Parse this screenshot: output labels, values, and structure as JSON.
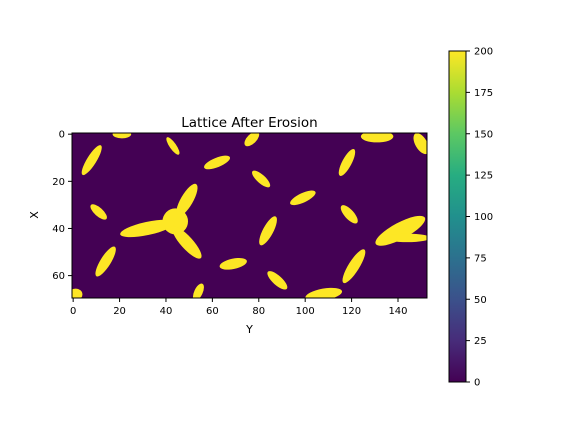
{
  "chart_data": {
    "type": "heatmap",
    "title": "Lattice After Erosion",
    "xlabel": "Y",
    "ylabel": "X",
    "grid_shape": [
      70,
      153
    ],
    "xlim": [
      -0.5,
      152.5
    ],
    "ylim": [
      69.5,
      -0.5
    ],
    "x_ticks": [
      0,
      20,
      40,
      60,
      80,
      100,
      120,
      140
    ],
    "y_ticks": [
      0,
      20,
      40,
      60
    ],
    "colorbar": {
      "min": 0,
      "max": 200,
      "ticks": [
        0,
        25,
        50,
        75,
        100,
        125,
        150,
        175,
        200
      ],
      "colormap": "viridis"
    },
    "background_value": 0,
    "feature_value": 200,
    "colors": {
      "low": "#440154",
      "high": "#fde725"
    },
    "features": [
      {
        "kind": "ellipse",
        "cx": 8,
        "cy": 11,
        "rx": 7.5,
        "ry": 2,
        "angle": -58
      },
      {
        "kind": "ellipse",
        "cx": 21,
        "cy": 0,
        "rx": 4,
        "ry": 1.8,
        "angle": 0
      },
      {
        "kind": "ellipse",
        "cx": 43,
        "cy": 5,
        "rx": 4.5,
        "ry": 1.4,
        "angle": 55
      },
      {
        "kind": "ellipse",
        "cx": 62,
        "cy": 12,
        "rx": 6,
        "ry": 2,
        "angle": -22
      },
      {
        "kind": "ellipse",
        "cx": 77,
        "cy": 2,
        "rx": 4,
        "ry": 2,
        "angle": -45
      },
      {
        "kind": "ellipse",
        "cx": 81,
        "cy": 19,
        "rx": 5,
        "ry": 1.8,
        "angle": 42
      },
      {
        "kind": "ellipse",
        "cx": 118,
        "cy": 12,
        "rx": 6.5,
        "ry": 2,
        "angle": -62
      },
      {
        "kind": "ellipse",
        "cx": 131,
        "cy": 1,
        "rx": 7,
        "ry": 2.5,
        "angle": 0
      },
      {
        "kind": "ellipse",
        "cx": 150,
        "cy": 4,
        "rx": 5,
        "ry": 2.5,
        "angle": 60
      },
      {
        "kind": "ellipse",
        "cx": 11,
        "cy": 33,
        "rx": 4.5,
        "ry": 1.8,
        "angle": 42
      },
      {
        "kind": "ellipse",
        "cx": 99,
        "cy": 27,
        "rx": 6,
        "ry": 2,
        "angle": -25
      },
      {
        "kind": "ellipse",
        "cx": 119,
        "cy": 34,
        "rx": 5,
        "ry": 2,
        "angle": 48
      },
      {
        "kind": "ellipse",
        "cx": 84,
        "cy": 41,
        "rx": 7,
        "ry": 2.2,
        "angle": -62
      },
      {
        "kind": "ellipse",
        "cx": 14,
        "cy": 54,
        "rx": 7.5,
        "ry": 2.2,
        "angle": -58
      },
      {
        "kind": "ellipse",
        "cx": 69,
        "cy": 55,
        "rx": 6,
        "ry": 2.2,
        "angle": -12
      },
      {
        "kind": "ellipse",
        "cx": 88,
        "cy": 62,
        "rx": 5.5,
        "ry": 2,
        "angle": 42
      },
      {
        "kind": "ellipse",
        "cx": 121,
        "cy": 56,
        "rx": 8.5,
        "ry": 2.3,
        "angle": -58
      },
      {
        "kind": "ellipse",
        "cx": 108,
        "cy": 68,
        "rx": 8,
        "ry": 2.5,
        "angle": -10
      },
      {
        "kind": "ellipse",
        "cx": 54,
        "cy": 67,
        "rx": 4,
        "ry": 1.8,
        "angle": -65
      },
      {
        "kind": "ellipse",
        "cx": 1,
        "cy": 68,
        "rx": 3,
        "ry": 2.5,
        "angle": 0
      },
      {
        "kind": "ellipse",
        "cx": 141,
        "cy": 41,
        "rx": 12,
        "ry": 3.5,
        "angle": -28
      },
      {
        "kind": "ellipse",
        "cx": 144,
        "cy": 44,
        "rx": 10,
        "ry": 1.8,
        "angle": 0
      },
      {
        "kind": "ellipse",
        "cx": 44,
        "cy": 37,
        "rx": 5.5,
        "ry": 5.5,
        "angle": 0
      },
      {
        "kind": "ellipse",
        "cx": 49,
        "cy": 28,
        "rx": 8,
        "ry": 2.6,
        "angle": -60
      },
      {
        "kind": "ellipse",
        "cx": 32,
        "cy": 40,
        "rx": 12,
        "ry": 2.8,
        "angle": -12
      },
      {
        "kind": "ellipse",
        "cx": 49,
        "cy": 46,
        "rx": 9,
        "ry": 2.6,
        "angle": 48
      }
    ]
  }
}
